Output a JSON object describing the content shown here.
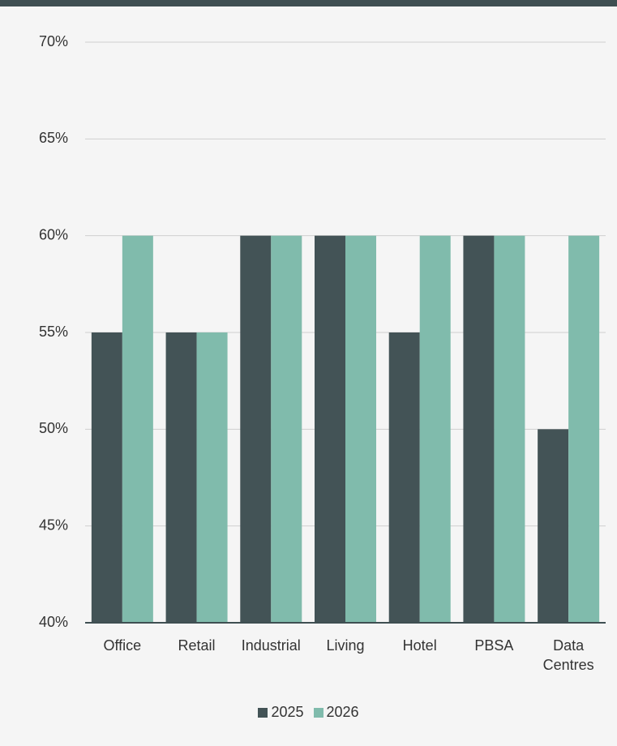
{
  "chart_data": {
    "type": "bar",
    "categories": [
      "Office",
      "Retail",
      "Industrial",
      "Living",
      "Hotel",
      "PBSA",
      "Data Centres"
    ],
    "series": [
      {
        "name": "2025",
        "color": "#435356",
        "values": [
          55,
          55,
          60,
          60,
          55,
          60,
          50
        ]
      },
      {
        "name": "2026",
        "color": "#80bbac",
        "values": [
          60,
          55,
          60,
          60,
          60,
          60,
          60
        ]
      }
    ],
    "ylim": [
      40,
      70
    ],
    "yticks": [
      {
        "value": 40,
        "label": "40%"
      },
      {
        "value": 45,
        "label": "45%"
      },
      {
        "value": 50,
        "label": "50%"
      },
      {
        "value": 55,
        "label": "55%"
      },
      {
        "value": 60,
        "label": "60%"
      },
      {
        "value": 65,
        "label": "65%"
      },
      {
        "value": 70,
        "label": "70%"
      }
    ],
    "grid": true,
    "legend": "bottom"
  }
}
